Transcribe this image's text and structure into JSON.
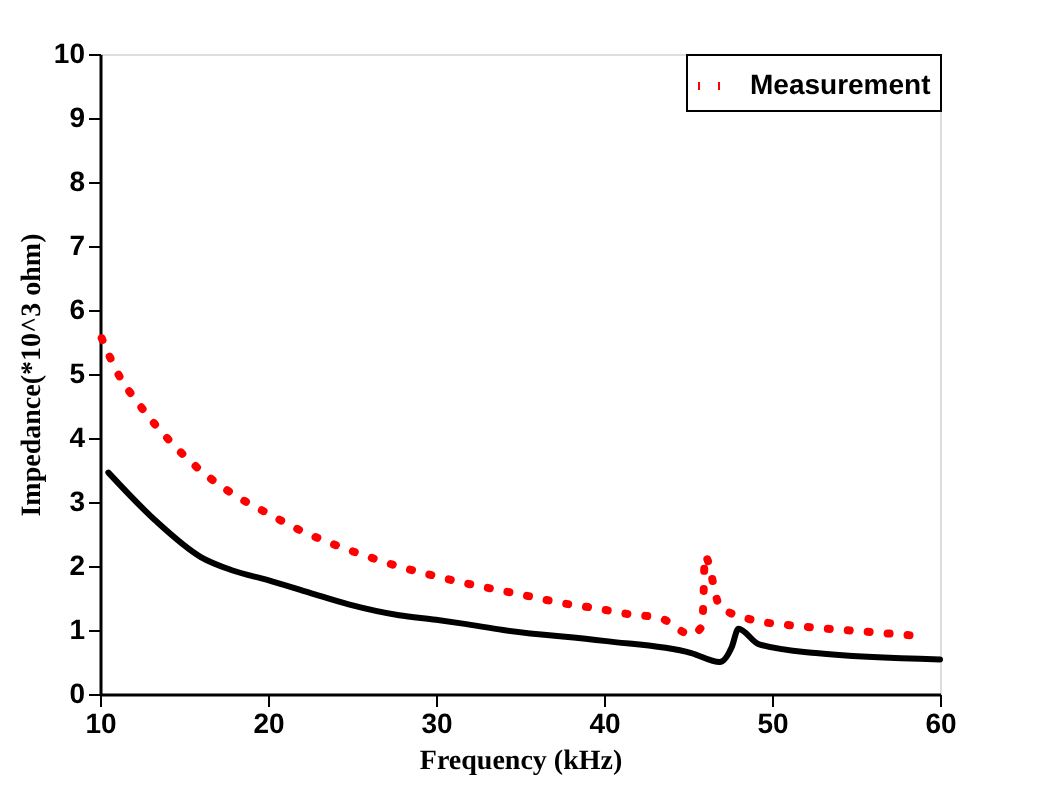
{
  "chart_data": {
    "type": "line",
    "xlabel": "Frequency (kHz)",
    "ylabel": "Impedance(*10^3 ohm)",
    "xlim": [
      10,
      60
    ],
    "ylim": [
      0,
      10
    ],
    "xticks": [
      10,
      20,
      30,
      40,
      50,
      60
    ],
    "yticks": [
      0,
      1,
      2,
      3,
      4,
      5,
      6,
      7,
      8,
      9,
      10
    ],
    "grid": false,
    "legend": "top right",
    "marker": "none",
    "series": [
      {
        "color": "#000000",
        "line_style": "solid",
        "x": [
          10.5,
          13.3,
          16.0,
          17.9,
          20.0,
          22.5,
          24.8,
          27.8,
          30.0,
          31.6,
          34.0,
          40.0,
          45.2,
          46.9,
          47.6,
          48.0,
          49.2,
          52.6,
          60.0
        ],
        "values": [
          3.46,
          2.71,
          2.14,
          1.93,
          1.78,
          1.58,
          1.4,
          1.23,
          1.16,
          1.1,
          1.0,
          0.83,
          0.64,
          0.5,
          0.73,
          1.02,
          0.78,
          0.64,
          0.54
        ]
      },
      {
        "name": "Measurement",
        "color": "#ff0000",
        "line_style": "dotted",
        "x": [
          10.1,
          11.0,
          12.4,
          14.1,
          16.0,
          18.0,
          20.0,
          21.9,
          23.9,
          25.8,
          27.7,
          29.7,
          31.6,
          33.6,
          35.5,
          37.5,
          39.5,
          41.4,
          43.4,
          45.2,
          45.85,
          45.93,
          46.0,
          46.9,
          48.8,
          50.9,
          52.8,
          54.8,
          56.7,
          58.6
        ],
        "values": [
          5.56,
          5.04,
          4.5,
          3.97,
          3.49,
          3.11,
          2.82,
          2.56,
          2.34,
          2.16,
          2.0,
          1.86,
          1.74,
          1.63,
          1.53,
          1.42,
          1.34,
          1.25,
          1.18,
          0.93,
          1.07,
          1.59,
          2.16,
          1.37,
          1.16,
          1.08,
          1.03,
          0.99,
          0.95,
          0.91
        ]
      }
    ]
  }
}
